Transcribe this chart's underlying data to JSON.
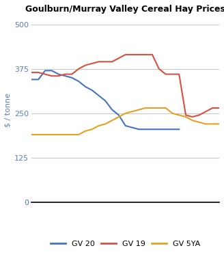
{
  "title": "Goulburn/Murray Valley Cereal Hay Prices",
  "ylabel": "$ / tonne",
  "ylim": [
    0,
    520
  ],
  "yticks": [
    0,
    125,
    250,
    375,
    500
  ],
  "background_color": "#ffffff",
  "series": {
    "GV 20": {
      "color": "#4472c4",
      "x": [
        0,
        1,
        2,
        3,
        4,
        5,
        6,
        7,
        8,
        9,
        10,
        11,
        12,
        13,
        14,
        15,
        16,
        17,
        18,
        19,
        20,
        21,
        22,
        23,
        24,
        25,
        26,
        27,
        28
      ],
      "y": [
        345,
        345,
        370,
        370,
        360,
        355,
        350,
        340,
        325,
        315,
        300,
        285,
        260,
        245,
        215,
        210,
        205,
        205,
        205,
        205,
        205,
        205,
        205,
        null,
        null,
        null,
        null,
        null,
        null
      ]
    },
    "GV 19": {
      "color": "#d94f3d",
      "x": [
        0,
        1,
        2,
        3,
        4,
        5,
        6,
        7,
        8,
        9,
        10,
        11,
        12,
        13,
        14,
        15,
        16,
        17,
        18,
        19,
        20,
        21,
        22,
        23,
        24,
        25,
        26,
        27,
        28
      ],
      "y": [
        365,
        365,
        360,
        355,
        355,
        360,
        360,
        375,
        385,
        390,
        395,
        395,
        395,
        405,
        415,
        415,
        415,
        415,
        415,
        375,
        360,
        360,
        360,
        245,
        240,
        245,
        255,
        265,
        265
      ]
    },
    "GV 5YA": {
      "color": "#e6a020",
      "x": [
        0,
        1,
        2,
        3,
        4,
        5,
        6,
        7,
        8,
        9,
        10,
        11,
        12,
        13,
        14,
        15,
        16,
        17,
        18,
        19,
        20,
        21,
        22,
        23,
        24,
        25,
        26,
        27,
        28
      ],
      "y": [
        190,
        190,
        190,
        190,
        190,
        190,
        190,
        190,
        200,
        205,
        215,
        220,
        230,
        240,
        250,
        255,
        260,
        265,
        265,
        265,
        265,
        250,
        245,
        240,
        230,
        225,
        220,
        220,
        220
      ]
    }
  }
}
